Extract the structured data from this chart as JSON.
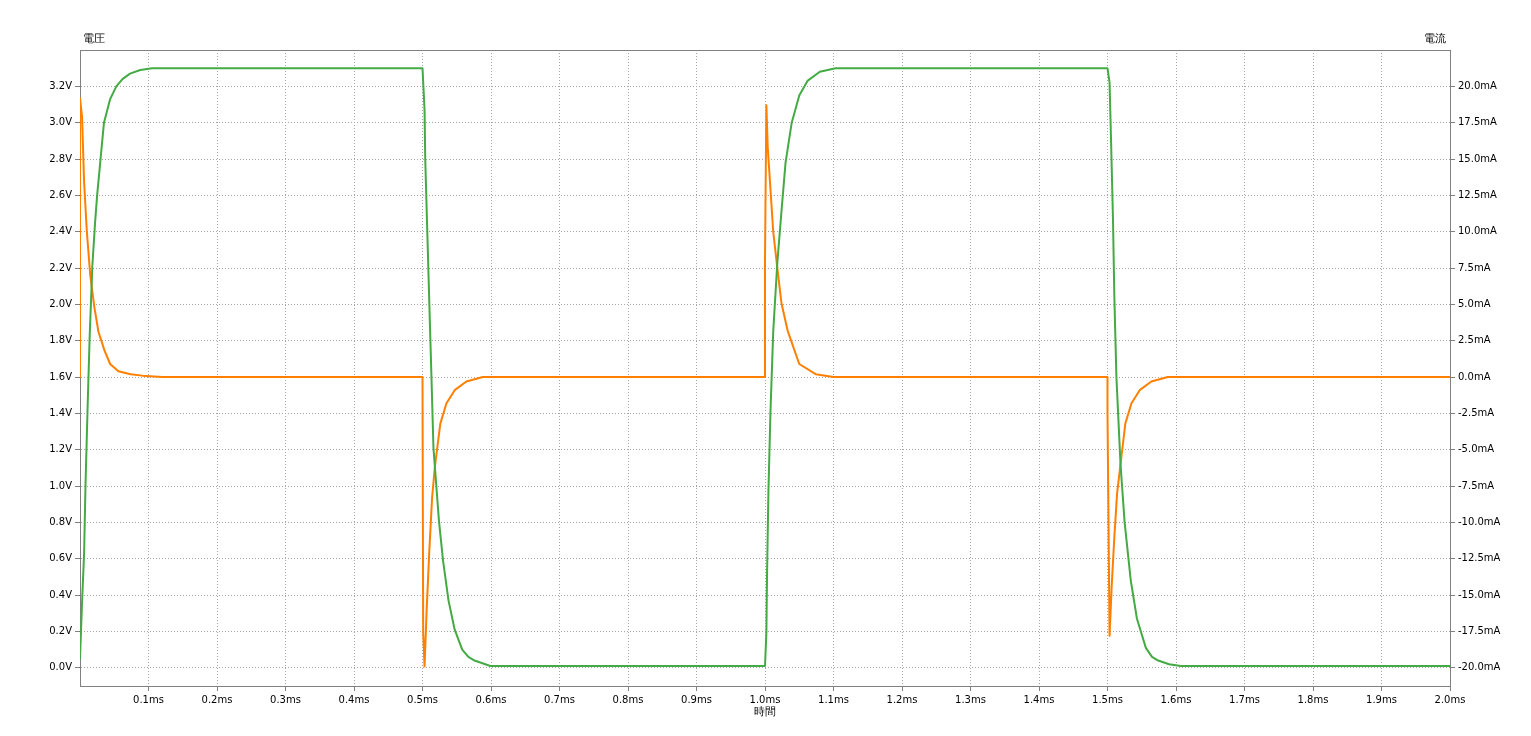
{
  "chart_data": {
    "type": "line",
    "xlabel": "時間",
    "ylabel": "電圧",
    "y2label": "電流",
    "xlim": [
      0,
      2
    ],
    "xticks": [
      {
        "value": 0.1,
        "label": "0.1ms"
      },
      {
        "value": 0.2,
        "label": "0.2ms"
      },
      {
        "value": 0.3,
        "label": "0.3ms"
      },
      {
        "value": 0.4,
        "label": "0.4ms"
      },
      {
        "value": 0.5,
        "label": "0.5ms"
      },
      {
        "value": 0.6,
        "label": "0.6ms"
      },
      {
        "value": 0.7,
        "label": "0.7ms"
      },
      {
        "value": 0.8,
        "label": "0.8ms"
      },
      {
        "value": 0.9,
        "label": "0.9ms"
      },
      {
        "value": 1.0,
        "label": "1.0ms"
      },
      {
        "value": 1.1,
        "label": "1.1ms"
      },
      {
        "value": 1.2,
        "label": "1.2ms"
      },
      {
        "value": 1.3,
        "label": "1.3ms"
      },
      {
        "value": 1.4,
        "label": "1.4ms"
      },
      {
        "value": 1.5,
        "label": "1.5ms"
      },
      {
        "value": 1.6,
        "label": "1.6ms"
      },
      {
        "value": 1.7,
        "label": "1.7ms"
      },
      {
        "value": 1.8,
        "label": "1.8ms"
      },
      {
        "value": 1.9,
        "label": "1.9ms"
      },
      {
        "value": 2.0,
        "label": "2.0ms"
      }
    ],
    "ylim": [
      -0.1,
      3.4
    ],
    "yticks": [
      {
        "value": 0,
        "label": "0.0V"
      },
      {
        "value": 0.2,
        "label": "0.2V"
      },
      {
        "value": 0.4,
        "label": "0.4V"
      },
      {
        "value": 0.6,
        "label": "0.6V"
      },
      {
        "value": 0.8,
        "label": "0.8V"
      },
      {
        "value": 1.0,
        "label": "1.0V"
      },
      {
        "value": 1.2,
        "label": "1.2V"
      },
      {
        "value": 1.4,
        "label": "1.4V"
      },
      {
        "value": 1.6,
        "label": "1.6V"
      },
      {
        "value": 1.8,
        "label": "1.8V"
      },
      {
        "value": 2.0,
        "label": "2.0V"
      },
      {
        "value": 2.2,
        "label": "2.2V"
      },
      {
        "value": 2.4,
        "label": "2.4V"
      },
      {
        "value": 2.6,
        "label": "2.6V"
      },
      {
        "value": 2.8,
        "label": "2.8V"
      },
      {
        "value": 3.0,
        "label": "3.0V"
      },
      {
        "value": 3.2,
        "label": "3.2V"
      }
    ],
    "y2lim": [
      -21.25,
      22.5
    ],
    "y2ticks": [
      {
        "value": -20,
        "label": "-20.0mA"
      },
      {
        "value": -17.5,
        "label": "-17.5mA"
      },
      {
        "value": -15,
        "label": "-15.0mA"
      },
      {
        "value": -12.5,
        "label": "-12.5mA"
      },
      {
        "value": -10,
        "label": "-10.0mA"
      },
      {
        "value": -7.5,
        "label": "-7.5mA"
      },
      {
        "value": -5,
        "label": "-5.0mA"
      },
      {
        "value": -2.5,
        "label": "-2.5mA"
      },
      {
        "value": 0,
        "label": "0.0mA"
      },
      {
        "value": 2.5,
        "label": "2.5mA"
      },
      {
        "value": 5,
        "label": "5.0mA"
      },
      {
        "value": 7.5,
        "label": "7.5mA"
      },
      {
        "value": 10,
        "label": "10.0mA"
      },
      {
        "value": 12.5,
        "label": "12.5mA"
      },
      {
        "value": 15,
        "label": "15.0mA"
      },
      {
        "value": 17.5,
        "label": "17.5mA"
      },
      {
        "value": 20,
        "label": "20.0mA"
      }
    ],
    "grid": true,
    "marker": "none",
    "series": [
      {
        "color": "#44aa44",
        "x": [
          0,
          0.003,
          0.006,
          0.008,
          0.011,
          0.014,
          0.018,
          0.022,
          0.025,
          0.03,
          0.035,
          0.044,
          0.053,
          0.062,
          0.073,
          0.088,
          0.105,
          0.5,
          0.503,
          0.504,
          0.507,
          0.51,
          0.513,
          0.516,
          0.52,
          0.524,
          0.53,
          0.538,
          0.547,
          0.558,
          0.567,
          0.576,
          0.599,
          1.0,
          1.002,
          1.003,
          1.005,
          1.008,
          1.012,
          1.018,
          1.024,
          1.03,
          1.039,
          1.05,
          1.062,
          1.08,
          1.103,
          1.5,
          1.503,
          1.505,
          1.508,
          1.51,
          1.513,
          1.519,
          1.525,
          1.534,
          1.543,
          1.556,
          1.565,
          1.574,
          1.59,
          1.607,
          2.0
        ],
        "values": [
          0.05,
          0.36,
          0.63,
          1.0,
          1.42,
          1.81,
          2.21,
          2.45,
          2.6,
          2.8,
          3.0,
          3.13,
          3.2,
          3.24,
          3.27,
          3.29,
          3.3,
          3.3,
          3.07,
          2.8,
          2.4,
          2.0,
          1.61,
          1.21,
          1.01,
          0.81,
          0.59,
          0.37,
          0.21,
          0.1,
          0.06,
          0.04,
          0.01,
          0.01,
          0.19,
          0.52,
          0.97,
          1.41,
          1.85,
          2.23,
          2.51,
          2.78,
          3.0,
          3.15,
          3.23,
          3.28,
          3.3,
          3.3,
          3.22,
          2.93,
          2.47,
          2.04,
          1.6,
          1.12,
          0.8,
          0.48,
          0.27,
          0.11,
          0.06,
          0.04,
          0.02,
          0.01,
          0.01
        ]
      },
      {
        "color": "#ff8000",
        "axis": "y2",
        "x": [
          0,
          0,
          0.003,
          0.006,
          0.01,
          0.015,
          0.021,
          0.027,
          0.036,
          0.044,
          0.056,
          0.074,
          0.091,
          0.12,
          0.5,
          0.501,
          0.503,
          0.506,
          0.51,
          0.514,
          0.518,
          0.526,
          0.535,
          0.547,
          0.564,
          0.588,
          1.0,
          1.0,
          1.002,
          1.004,
          1.008,
          1.012,
          1.018,
          1.024,
          1.033,
          1.05,
          1.074,
          1.1,
          1.5,
          1.5,
          1.503,
          1.506,
          1.51,
          1.514,
          1.519,
          1.526,
          1.535,
          1.547,
          1.564,
          1.588,
          2.0
        ],
        "values": [
          0,
          19.2,
          17.9,
          13.4,
          10.0,
          7.0,
          4.8,
          3.1,
          1.8,
          0.9,
          0.4,
          0.2,
          0.1,
          0,
          0,
          -17.6,
          -19.9,
          -16.1,
          -11.9,
          -8.3,
          -6.2,
          -3.2,
          -1.8,
          -0.9,
          -0.3,
          0,
          0,
          8.1,
          18.7,
          15.8,
          12.9,
          10.0,
          7.5,
          5.1,
          3.2,
          0.9,
          0.2,
          0,
          0,
          -2.5,
          -17.8,
          -14.5,
          -11.0,
          -8.0,
          -6.0,
          -3.2,
          -1.8,
          -0.9,
          -0.3,
          0,
          0
        ]
      }
    ]
  }
}
